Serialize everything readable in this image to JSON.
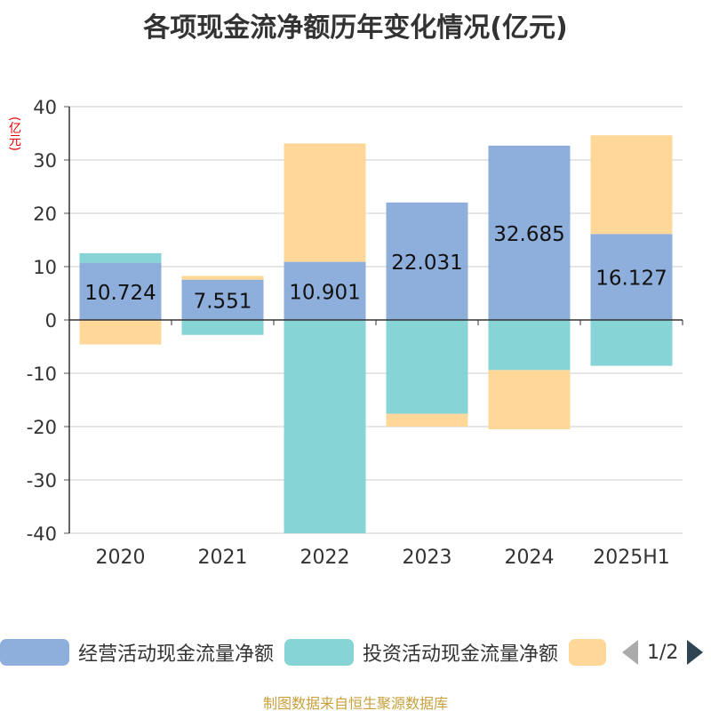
{
  "chart_data": {
    "type": "bar",
    "stacked": true,
    "title": "各项现金流净额历年变化情况(亿元)",
    "ylabel": "(亿元)",
    "categories": [
      "2020",
      "2021",
      "2022",
      "2023",
      "2024",
      "2025H1"
    ],
    "ylim": [
      -40,
      40
    ],
    "yticks": [
      40,
      30,
      20,
      10,
      0,
      -10,
      -20,
      -30,
      -40
    ],
    "grid": true,
    "series": [
      {
        "name": "经营活动现金流量净额",
        "color": "#8eaedb",
        "values": [
          10.724,
          7.551,
          10.901,
          22.031,
          32.685,
          16.127
        ],
        "labels": [
          "10.724",
          "7.551",
          "10.901",
          "22.031",
          "32.685",
          "16.127"
        ]
      },
      {
        "name": "投资活动现金流量净额",
        "color": "#86d4d6",
        "values": [
          1.8,
          -2.8,
          -40.0,
          -17.6,
          -9.4,
          -8.6
        ]
      },
      {
        "name": "",
        "color": "#ffd899",
        "values": [
          -4.6,
          0.7,
          22.2,
          -2.4,
          -11.1,
          18.5
        ]
      }
    ],
    "legend_position": "bottom"
  },
  "legend": {
    "items": [
      {
        "label": "经营活动现金流量净额",
        "color": "#8eaedb"
      },
      {
        "label": "投资活动现金流量净额",
        "color": "#86d4d6"
      },
      {
        "label": "",
        "color": "#ffd899"
      }
    ],
    "page_indicator": "1/2"
  },
  "source_text": "制图数据来自恒生聚源数据库"
}
